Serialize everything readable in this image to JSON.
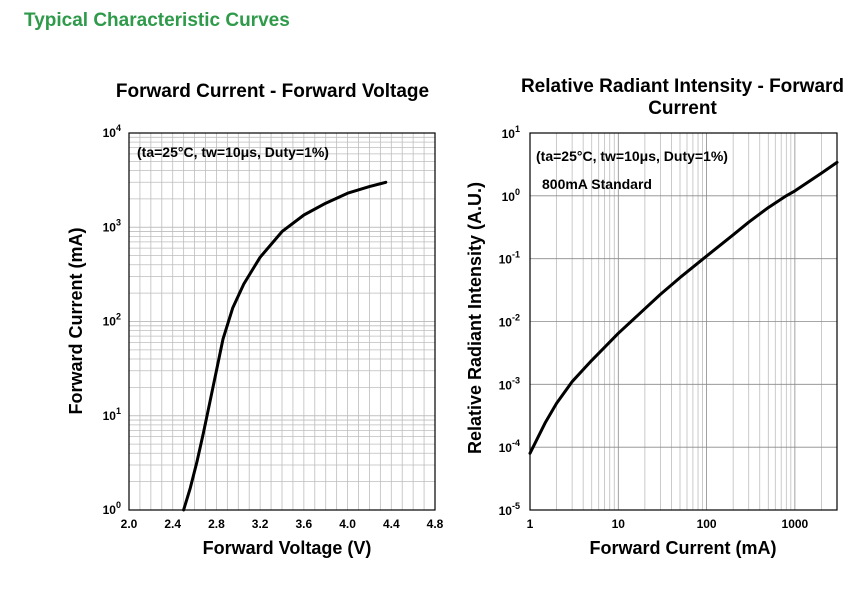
{
  "page": {
    "heading": "Typical Characteristic Curves"
  },
  "chart_data": [
    {
      "type": "line",
      "title": "Forward Current - Forward Voltage",
      "xlabel": "Forward Voltage (V)",
      "ylabel": "Forward Current (mA)",
      "x_scale": "linear",
      "y_scale": "log",
      "xlim": [
        2.0,
        4.8
      ],
      "ylim": [
        1,
        10000
      ],
      "x_ticks": [
        "2.0",
        "2.4",
        "2.8",
        "3.2",
        "3.6",
        "4.0",
        "4.4",
        "4.8"
      ],
      "y_ticks": [
        {
          "base": "10",
          "exp": "0"
        },
        {
          "base": "10",
          "exp": "1"
        },
        {
          "base": "10",
          "exp": "2"
        },
        {
          "base": "10",
          "exp": "3"
        },
        {
          "base": "10",
          "exp": "4"
        }
      ],
      "annotation": "(ta=25°C, tw=10μs, Duty=1%)",
      "grid": true,
      "series": [
        {
          "x": [
            2.5,
            2.56,
            2.62,
            2.68,
            2.74,
            2.8,
            2.86,
            2.95,
            3.05,
            3.2,
            3.4,
            3.6,
            3.8,
            4.0,
            4.2,
            4.35
          ],
          "y": [
            1,
            1.7,
            3.2,
            6.5,
            14,
            30,
            65,
            140,
            250,
            480,
            900,
            1350,
            1800,
            2300,
            2700,
            3000
          ]
        }
      ]
    },
    {
      "type": "line",
      "title": "Relative Radiant Intensity - Forward Current",
      "xlabel": "Forward Current (mA)",
      "ylabel": "Relative Radiant Intensity (A.U.)",
      "x_scale": "log",
      "y_scale": "log",
      "xlim": [
        1,
        3000
      ],
      "ylim": [
        1e-05,
        10
      ],
      "x_ticks": [
        "1",
        "10",
        "100",
        "1000"
      ],
      "y_ticks": [
        {
          "base": "10",
          "exp": "1"
        },
        {
          "base": "10",
          "exp": "0"
        },
        {
          "base": "10",
          "exp": "-1"
        },
        {
          "base": "10",
          "exp": "-2"
        },
        {
          "base": "10",
          "exp": "-3"
        },
        {
          "base": "10",
          "exp": "-4"
        },
        {
          "base": "10",
          "exp": "-5"
        }
      ],
      "annotation": "(ta=25°C, tw=10μs, Duty=1%)",
      "annotation2": "800mA Standard",
      "grid": true,
      "series": [
        {
          "x": [
            1,
            1.5,
            2,
            3,
            5,
            10,
            20,
            30,
            50,
            100,
            200,
            300,
            500,
            800,
            1000,
            2000,
            3000
          ],
          "y": [
            8e-05,
            0.00025,
            0.0005,
            0.0011,
            0.0024,
            0.0065,
            0.016,
            0.027,
            0.05,
            0.11,
            0.24,
            0.38,
            0.65,
            1.0,
            1.2,
            2.3,
            3.4
          ]
        }
      ]
    }
  ]
}
